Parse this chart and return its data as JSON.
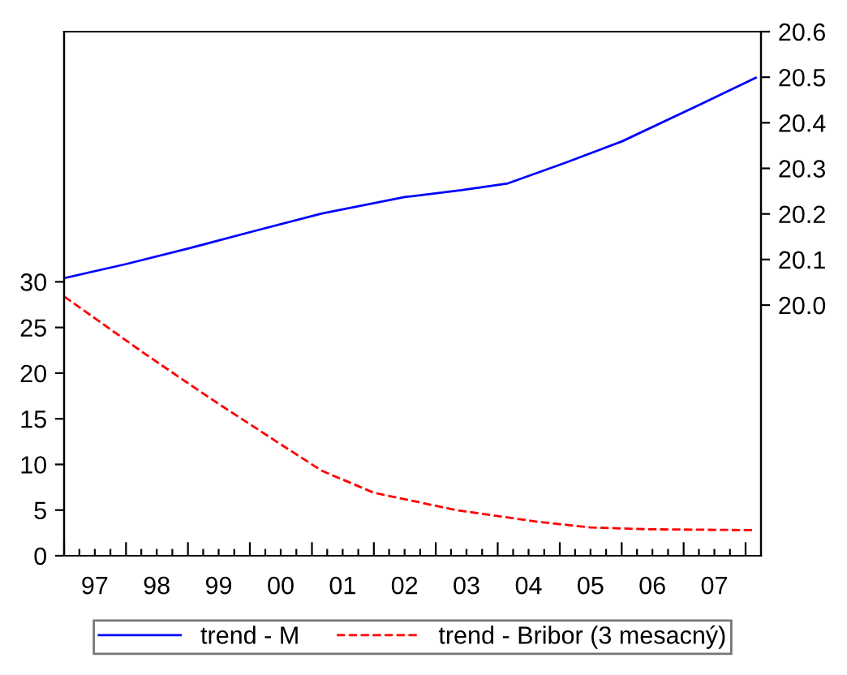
{
  "chart_data": {
    "type": "line",
    "legend": "bottom",
    "grid": false,
    "marker": "none",
    "xlim": [
      "1997-01",
      "2008-04"
    ],
    "xticks": [
      {
        "value": "1997-01",
        "label": null
      },
      {
        "value": "1997-04",
        "label": null
      },
      {
        "value": "1997-07",
        "label": "97"
      },
      {
        "value": "1997-10",
        "label": null
      },
      {
        "value": "1998-01",
        "label": null
      },
      {
        "value": "1998-04",
        "label": null
      },
      {
        "value": "1998-07",
        "label": "98"
      },
      {
        "value": "1998-10",
        "label": null
      },
      {
        "value": "1999-01",
        "label": null
      },
      {
        "value": "1999-04",
        "label": null
      },
      {
        "value": "1999-07",
        "label": "99"
      },
      {
        "value": "1999-10",
        "label": null
      },
      {
        "value": "2000-01",
        "label": null
      },
      {
        "value": "2000-04",
        "label": null
      },
      {
        "value": "2000-07",
        "label": "00"
      },
      {
        "value": "2000-10",
        "label": null
      },
      {
        "value": "2001-01",
        "label": null
      },
      {
        "value": "2001-04",
        "label": null
      },
      {
        "value": "2001-07",
        "label": "01"
      },
      {
        "value": "2001-10",
        "label": null
      },
      {
        "value": "2002-01",
        "label": null
      },
      {
        "value": "2002-04",
        "label": null
      },
      {
        "value": "2002-07",
        "label": "02"
      },
      {
        "value": "2002-10",
        "label": null
      },
      {
        "value": "2003-01",
        "label": null
      },
      {
        "value": "2003-04",
        "label": null
      },
      {
        "value": "2003-07",
        "label": "03"
      },
      {
        "value": "2003-10",
        "label": null
      },
      {
        "value": "2004-01",
        "label": null
      },
      {
        "value": "2004-04",
        "label": null
      },
      {
        "value": "2004-07",
        "label": "04"
      },
      {
        "value": "2004-10",
        "label": null
      },
      {
        "value": "2005-01",
        "label": null
      },
      {
        "value": "2005-04",
        "label": null
      },
      {
        "value": "2005-07",
        "label": "05"
      },
      {
        "value": "2005-10",
        "label": null
      },
      {
        "value": "2006-01",
        "label": null
      },
      {
        "value": "2006-04",
        "label": null
      },
      {
        "value": "2006-07",
        "label": "06"
      },
      {
        "value": "2006-10",
        "label": null
      },
      {
        "value": "2007-01",
        "label": null
      },
      {
        "value": "2007-04",
        "label": null
      },
      {
        "value": "2007-07",
        "label": "07"
      },
      {
        "value": "2007-10",
        "label": null
      },
      {
        "value": "2008-01",
        "label": null
      }
    ],
    "ylim": [
      0,
      57.4
    ],
    "yticks": [
      0,
      5,
      10,
      15,
      20,
      25,
      30
    ],
    "y2lim": [
      19.45,
      20.6
    ],
    "y2ticks": [
      {
        "value": 20.0,
        "label": "20.0"
      },
      20.1,
      20.2,
      20.3,
      20.4,
      20.5,
      20.6
    ],
    "series": [
      {
        "name": "trend - M",
        "color": "#0000ff",
        "axis": "y2",
        "line_style": "solid",
        "x": [
          "1997-01",
          "1998-01",
          "1999-01",
          "2000-02",
          "2001-03",
          "2002-07",
          "2003-06",
          "2004-03",
          "2005-02",
          "2006-01",
          "2007-04",
          "2008-03"
        ],
        "values": [
          20.059,
          20.09,
          20.124,
          20.163,
          20.201,
          20.237,
          20.252,
          20.267,
          20.312,
          20.359,
          20.439,
          20.499
        ]
      },
      {
        "name": "trend - Bribor (3 mesacný)",
        "color": "#ff0000",
        "axis": "y",
        "line_style": "dashed",
        "x": [
          "1997-01",
          "1998-05",
          "1999-06",
          "2000-07",
          "2001-03",
          "2002-01",
          "2003-05",
          "2004-09",
          "2005-07",
          "2006-06",
          "2008-03"
        ],
        "values": [
          28.4,
          22.0,
          17.0,
          12.2,
          9.3,
          6.9,
          5.0,
          3.7,
          3.1,
          2.9,
          2.8
        ]
      }
    ]
  }
}
